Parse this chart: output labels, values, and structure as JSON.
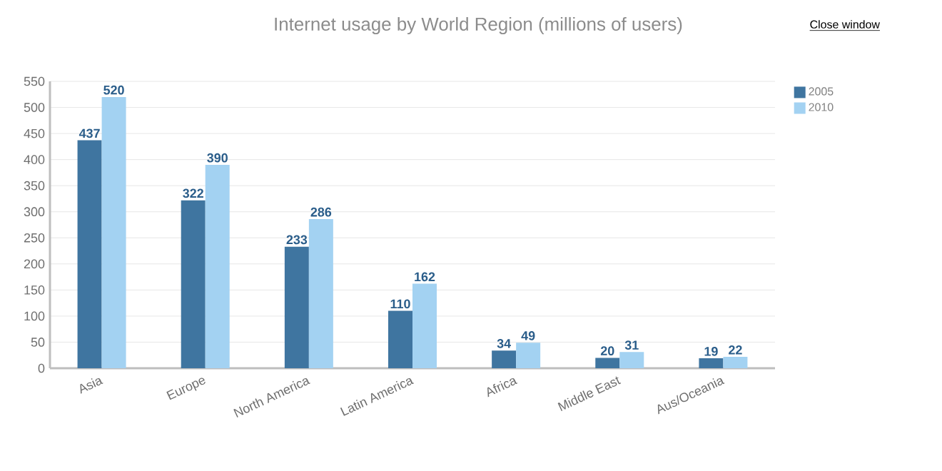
{
  "chart_data": {
    "type": "bar",
    "title": "Internet usage by World Region (millions of users)",
    "categories": [
      "Asia",
      "Europe",
      "North America",
      "Latin America",
      "Africa",
      "Middle East",
      "Aus/Oceania"
    ],
    "series": [
      {
        "name": "2005",
        "color": "#3f75a0",
        "values": [
          437,
          322,
          233,
          110,
          34,
          20,
          19
        ]
      },
      {
        "name": "2010",
        "color": "#a3d2f2",
        "values": [
          520,
          390,
          286,
          162,
          49,
          31,
          22
        ]
      }
    ],
    "ylim": [
      0,
      550
    ],
    "yticks": [
      0,
      50,
      100,
      150,
      200,
      250,
      300,
      350,
      400,
      450,
      500,
      550
    ],
    "grid": "y",
    "legend": "top right",
    "data_labels": true,
    "annotations": [
      "Close window"
    ]
  }
}
